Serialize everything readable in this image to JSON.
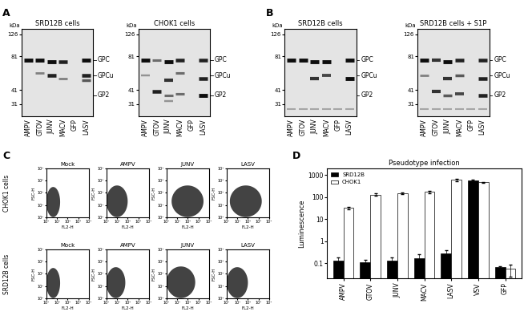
{
  "blot_axis": {
    "unit": "kDa",
    "log": "y",
    "ylim": [
      24,
      140
    ],
    "yticks": [
      126,
      81,
      41,
      31
    ],
    "lanes": [
      "AMPV",
      "GTOV",
      "JUNV",
      "MACV",
      "GFP",
      "LASV"
    ],
    "band_labels": [
      {
        "label": "GPC",
        "kDa": 75
      },
      {
        "label": "GPCu",
        "kDa": 55
      },
      {
        "label": "GP2",
        "kDa": 37
      }
    ]
  },
  "blots": [
    {
      "panel": "A",
      "title": "SRD12B cells",
      "bands": [
        [
          [
            75,
            1.0
          ]
        ],
        [
          [
            75,
            1.0
          ],
          [
            58,
            0.4
          ]
        ],
        [
          [
            72,
            1.0
          ],
          [
            55,
            0.9
          ]
        ],
        [
          [
            72,
            0.9
          ],
          [
            52,
            0.4
          ]
        ],
        [],
        [
          [
            75,
            1.0
          ],
          [
            55,
            0.9
          ],
          [
            50,
            0.6
          ]
        ]
      ]
    },
    {
      "title": "CHOK1 cells",
      "bands": [
        [
          [
            75,
            1.0
          ],
          [
            55,
            0.3
          ]
        ],
        [
          [
            75,
            0.5
          ],
          [
            40,
            0.9
          ]
        ],
        [
          [
            72,
            1.0
          ],
          [
            50,
            0.8
          ],
          [
            37,
            0.5
          ],
          [
            33,
            0.3
          ]
        ],
        [
          [
            75,
            0.9
          ],
          [
            58,
            0.5
          ],
          [
            38,
            0.5
          ]
        ],
        [],
        [
          [
            75,
            0.9
          ],
          [
            52,
            0.9
          ],
          [
            37,
            1.0
          ]
        ]
      ]
    },
    {
      "panel": "B",
      "title": "SRD12B cells",
      "bands": [
        [
          [
            75,
            1.0
          ],
          [
            28,
            0.2
          ]
        ],
        [
          [
            75,
            1.0
          ],
          [
            28,
            0.2
          ]
        ],
        [
          [
            72,
            1.0
          ],
          [
            52,
            0.8
          ],
          [
            28,
            0.2
          ]
        ],
        [
          [
            72,
            1.0
          ],
          [
            55,
            0.7
          ],
          [
            28,
            0.2
          ]
        ],
        [
          [
            28,
            0.2
          ]
        ],
        [
          [
            75,
            1.0
          ],
          [
            52,
            1.0
          ],
          [
            28,
            0.2
          ]
        ]
      ]
    },
    {
      "title": "SRD12B cells + S1P",
      "bands": [
        [
          [
            75,
            1.0
          ],
          [
            55,
            0.4
          ],
          [
            28,
            0.2
          ]
        ],
        [
          [
            75,
            0.8
          ],
          [
            40,
            0.8
          ],
          [
            28,
            0.2
          ]
        ],
        [
          [
            72,
            1.0
          ],
          [
            52,
            0.8
          ],
          [
            37,
            0.6
          ],
          [
            28,
            0.2
          ]
        ],
        [
          [
            75,
            0.9
          ],
          [
            55,
            0.6
          ],
          [
            38,
            0.7
          ],
          [
            28,
            0.2
          ]
        ],
        [
          [
            28,
            0.2
          ]
        ],
        [
          [
            75,
            0.9
          ],
          [
            52,
            0.9
          ],
          [
            37,
            0.9
          ],
          [
            28,
            0.2
          ]
        ]
      ]
    }
  ],
  "flow": {
    "panel": "C",
    "type": "density",
    "xlabel": "FL2-H",
    "ylabel": "FSC-H",
    "log": true,
    "xlim": [
      1,
      10000
    ],
    "ylim": [
      1,
      10000
    ],
    "xticks": [
      {
        "value": 1,
        "label": "10⁰"
      },
      {
        "value": 10,
        "label": "10¹"
      },
      {
        "value": 100,
        "label": "10²"
      },
      {
        "value": 1000,
        "label": "10³"
      },
      {
        "value": 10000,
        "label": "10⁴"
      }
    ],
    "yticks": [
      {
        "value": 1,
        "label": "10⁰"
      },
      {
        "value": 10,
        "label": "10¹"
      },
      {
        "value": 100,
        "label": "10²"
      },
      {
        "value": 1000,
        "label": "10³"
      },
      {
        "value": 10000,
        "label": "10⁴"
      }
    ],
    "color": "#222222",
    "columns": [
      "Mock",
      "AMPV",
      "JUNV",
      "LASV"
    ],
    "rows": [
      {
        "name": "CHOK1 cells",
        "clouds": [
          {
            "FL2-H": [
              1,
              20
            ],
            "FSC-H": [
              1,
              300
            ]
          },
          {
            "FL2-H": [
              1,
              100
            ],
            "FSC-H": [
              1,
              400
            ]
          },
          {
            "FL2-H": [
              3,
              3000
            ],
            "FSC-H": [
              1,
              400
            ]
          },
          {
            "FL2-H": [
              2,
              2000
            ],
            "FSC-H": [
              1,
              400
            ]
          }
        ]
      },
      {
        "name": "SRD12B cells",
        "clouds": [
          {
            "FL2-H": [
              1,
              20
            ],
            "FSC-H": [
              1,
              300
            ]
          },
          {
            "FL2-H": [
              1,
              60
            ],
            "FSC-H": [
              1,
              350
            ]
          },
          {
            "FL2-H": [
              1,
              500
            ],
            "FSC-H": [
              1,
              400
            ]
          },
          {
            "FL2-H": [
              1,
              100
            ],
            "FSC-H": [
              1,
              350
            ]
          }
        ]
      }
    ]
  },
  "chart_data": {
    "panel": "D",
    "type": "bar",
    "title": "Pseudotype infection",
    "ylabel": "Luminescence",
    "categories": [
      "AMPV",
      "GTOV",
      "JUNV",
      "MACV",
      "LASV",
      "VSV",
      "GFP"
    ],
    "log": "y",
    "ylim": [
      0.02,
      2000
    ],
    "yticks": [
      0.1,
      1,
      10,
      100,
      1000
    ],
    "legend": "upper left",
    "series": [
      {
        "name": "SRD12B",
        "color": "#000000",
        "values": [
          0.13,
          0.11,
          0.13,
          0.17,
          0.27,
          550,
          0.065
        ],
        "errors": [
          0.05,
          0.03,
          0.05,
          0.08,
          0.12,
          50,
          0.01
        ]
      },
      {
        "name": "CHOK1",
        "color": "#ffffff",
        "values": [
          32,
          130,
          150,
          170,
          600,
          470,
          0.055
        ],
        "errors": [
          3,
          15,
          15,
          15,
          80,
          30,
          0.03
        ]
      }
    ]
  }
}
